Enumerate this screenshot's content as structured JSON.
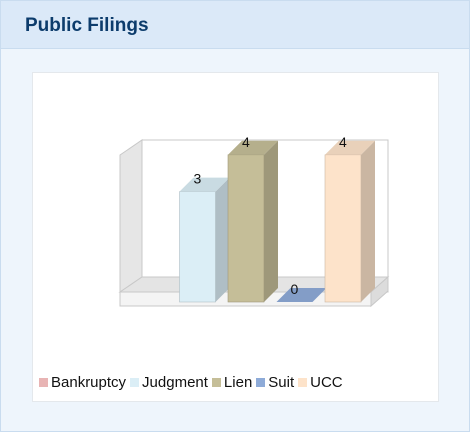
{
  "header": {
    "title": "Public Filings"
  },
  "chart_data": {
    "type": "bar3d",
    "categories": [
      "Bankruptcy",
      "Judgment",
      "Lien",
      "Suit",
      "UCC"
    ],
    "values": [
      null,
      3,
      4,
      0,
      4
    ],
    "colors": [
      "#e8b4b4",
      "#dbeef6",
      "#c5be98",
      "#8eabd8",
      "#fde3ca"
    ],
    "legend": "bottom"
  }
}
